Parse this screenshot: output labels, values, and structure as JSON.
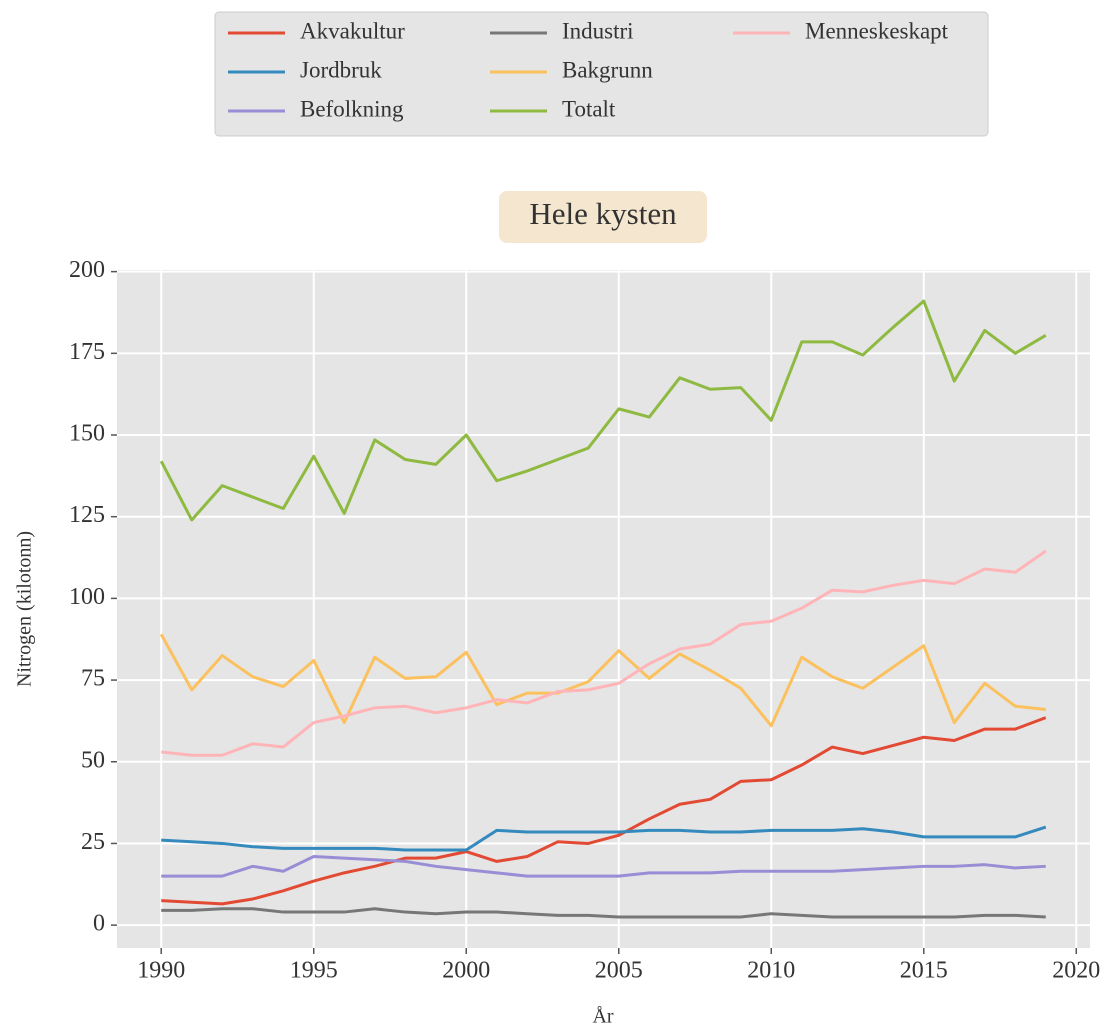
{
  "chart_data": {
    "type": "line",
    "title": "Hele kysten",
    "xlabel": "År",
    "ylabel": "Nitrogen (kilotonn)",
    "x": [
      1990,
      1991,
      1992,
      1993,
      1994,
      1995,
      1996,
      1997,
      1998,
      1999,
      2000,
      2001,
      2002,
      2003,
      2004,
      2005,
      2006,
      2007,
      2008,
      2009,
      2010,
      2011,
      2012,
      2013,
      2014,
      2015,
      2016,
      2017,
      2018,
      2019
    ],
    "series": [
      {
        "name": "Akvakultur",
        "color": "#E24A33",
        "values": [
          7.5,
          7,
          6.5,
          8,
          10.5,
          13.5,
          16,
          18,
          20.5,
          20.5,
          22.5,
          19.5,
          21,
          25.5,
          25,
          27.5,
          32.5,
          37,
          38.5,
          44,
          44.5,
          49,
          54.5,
          52.5,
          55,
          57.5,
          56.5,
          60,
          60,
          63.5
        ]
      },
      {
        "name": "Jordbruk",
        "color": "#348ABD",
        "values": [
          26,
          25.5,
          25,
          24,
          23.5,
          23.5,
          23.5,
          23.5,
          23,
          23,
          23,
          29,
          28.5,
          28.5,
          28.5,
          28.5,
          29,
          29,
          28.5,
          28.5,
          29,
          29,
          29,
          29.5,
          28.5,
          27,
          27,
          27,
          27,
          30
        ]
      },
      {
        "name": "Befolkning",
        "color": "#988ED5",
        "values": [
          15,
          15,
          15,
          18,
          16.5,
          21,
          20.5,
          20,
          19.5,
          18,
          17,
          16,
          15,
          15,
          15,
          15,
          16,
          16,
          16,
          16.5,
          16.5,
          16.5,
          16.5,
          17,
          17.5,
          18,
          18,
          18.5,
          17.5,
          18
        ]
      },
      {
        "name": "Industri",
        "color": "#777777",
        "values": [
          4.5,
          4.5,
          5,
          5,
          4,
          4,
          4,
          5,
          4,
          3.5,
          4,
          4,
          3.5,
          3,
          3,
          2.5,
          2.5,
          2.5,
          2.5,
          2.5,
          3.5,
          3,
          2.5,
          2.5,
          2.5,
          2.5,
          2.5,
          3,
          3,
          2.5
        ]
      },
      {
        "name": "Bakgrunn",
        "color": "#FBC15E",
        "values": [
          89,
          72,
          82.5,
          76,
          73,
          81,
          62,
          82,
          75.5,
          76,
          83.5,
          67.5,
          71,
          71,
          74.5,
          84,
          75.5,
          83,
          78,
          72.5,
          61,
          82,
          76,
          72.5,
          79,
          85.5,
          62,
          74,
          67,
          66
        ]
      },
      {
        "name": "Totalt",
        "color": "#8EBA42",
        "values": [
          142,
          124,
          134.5,
          131,
          127.5,
          143.5,
          126,
          148.5,
          142.5,
          141,
          150,
          136,
          139,
          142.5,
          146,
          158,
          155.5,
          167.5,
          164,
          164.5,
          154.5,
          178.5,
          178.5,
          174.5,
          183,
          191,
          166.5,
          182,
          175,
          180.5
        ]
      },
      {
        "name": "Menneskeskapt",
        "color": "#FFB5B8",
        "values": [
          53,
          52,
          52,
          55.5,
          54.5,
          62,
          64,
          66.5,
          67,
          65,
          66.5,
          69,
          68,
          71.5,
          72,
          74,
          80,
          84.5,
          86,
          92,
          93,
          97,
          102.5,
          102,
          104,
          105.5,
          104.5,
          109,
          108,
          114.5
        ]
      }
    ],
    "xlim": [
      1988.55,
      2020.45
    ],
    "xticks": [
      1990,
      1995,
      2000,
      2005,
      2010,
      2015,
      2020
    ],
    "ylim": [
      -7,
      200.5
    ],
    "yticks": [
      0,
      25,
      50,
      75,
      100,
      125,
      150,
      175,
      200
    ],
    "grid": true,
    "legend": "top"
  }
}
